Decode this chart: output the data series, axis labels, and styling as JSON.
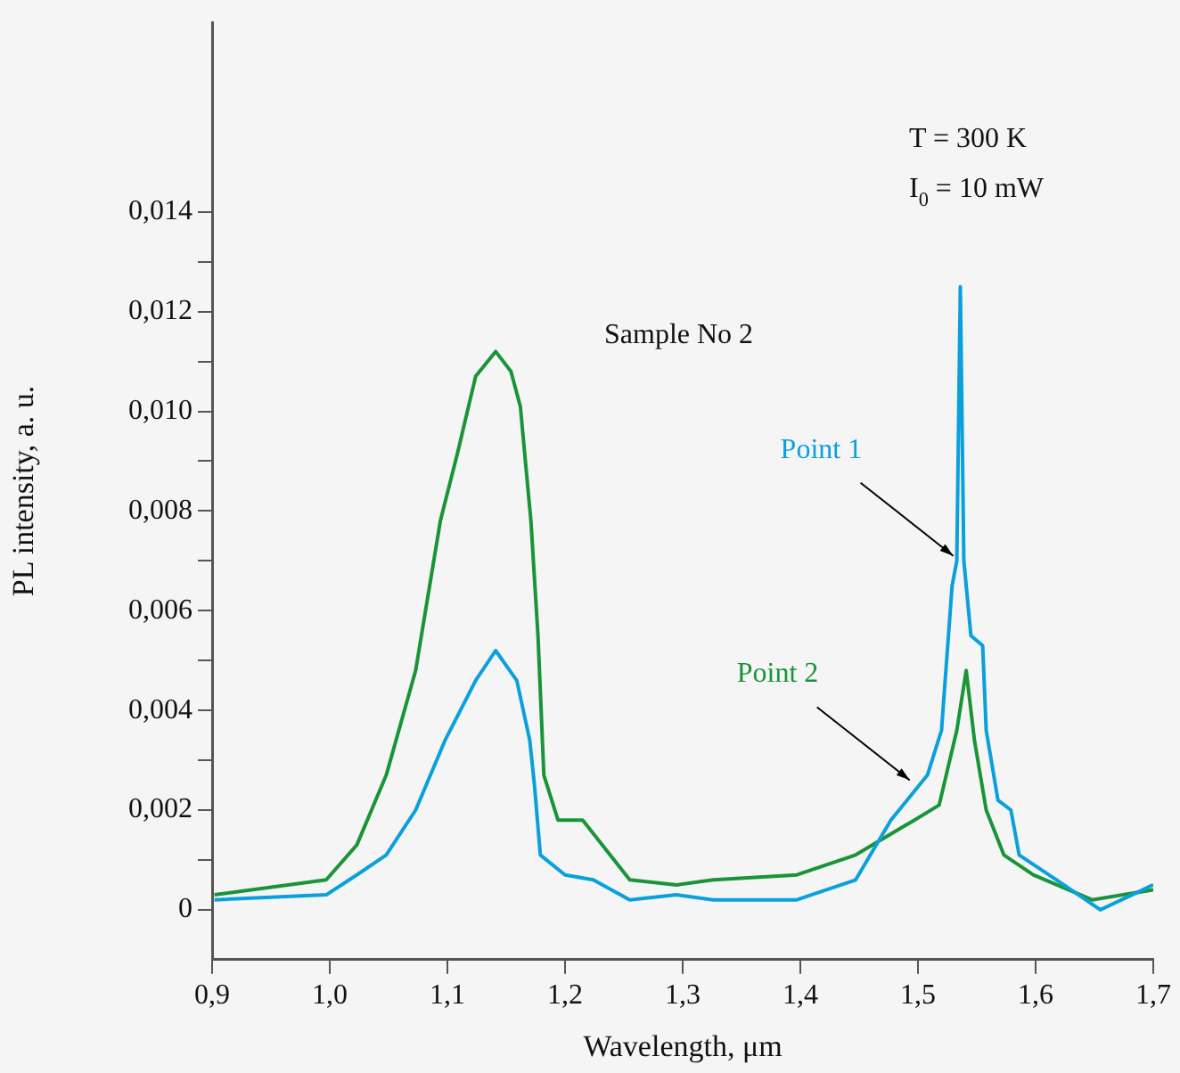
{
  "chart_data": {
    "type": "line",
    "xlabel": "Wavelength, μm",
    "ylabel": "PL intensity, a. u.",
    "xlim": [
      0.9,
      1.7
    ],
    "xticks": [
      {
        "value": 0.9,
        "label": "0,9"
      },
      {
        "value": 1.0,
        "label": "1,0"
      },
      {
        "value": 1.1,
        "label": "1,1"
      },
      {
        "value": 1.2,
        "label": "1,2"
      },
      {
        "value": 1.3,
        "label": "1,3"
      },
      {
        "value": 1.4,
        "label": "1,4"
      },
      {
        "value": 1.5,
        "label": "1,5"
      },
      {
        "value": 1.6,
        "label": "1,6"
      },
      {
        "value": 1.7,
        "label": "1,7"
      }
    ],
    "ylim": [
      -0.001,
      0.0178
    ],
    "yticks": [
      0,
      {
        "value": 0.001,
        "label": null
      },
      {
        "value": 0.002,
        "label": "0,002"
      },
      {
        "value": 0.003,
        "label": null
      },
      {
        "value": 0.004,
        "label": "0,004"
      },
      {
        "value": 0.005,
        "label": null
      },
      {
        "value": 0.006,
        "label": "0,006"
      },
      {
        "value": 0.007,
        "label": null
      },
      {
        "value": 0.008,
        "label": "0,008"
      },
      {
        "value": 0.009,
        "label": null
      },
      {
        "value": 0.01,
        "label": "0,010"
      },
      {
        "value": 0.011,
        "label": null
      },
      {
        "value": 0.012,
        "label": "0,012"
      },
      {
        "value": 0.013,
        "label": null
      },
      {
        "value": 0.014,
        "label": "0,014"
      }
    ],
    "grid": false,
    "legend": false,
    "marker": "none",
    "line_style": "solid",
    "series": [
      {
        "color": "#0aa0dc",
        "x": [
          0.902,
          0.997,
          1.023,
          1.048,
          1.073,
          1.098,
          1.124,
          1.141,
          1.159,
          1.17,
          1.174,
          1.179,
          1.2,
          1.224,
          1.255,
          1.295,
          1.326,
          1.397,
          1.447,
          1.477,
          1.508,
          1.52,
          1.529,
          1.533,
          1.536,
          1.539,
          1.545,
          1.555,
          1.558,
          1.568,
          1.579,
          1.586,
          1.624,
          1.655,
          1.7
        ],
        "values": [
          0.0002,
          0.0003,
          0.0007,
          0.0011,
          0.002,
          0.0034,
          0.0046,
          0.0052,
          0.0046,
          0.0034,
          0.0025,
          0.0011,
          0.0007,
          0.0006,
          0.0002,
          0.0003,
          0.0002,
          0.0002,
          0.0006,
          0.0018,
          0.0027,
          0.0036,
          0.0065,
          0.007,
          0.0125,
          0.007,
          0.0055,
          0.0053,
          0.0036,
          0.0022,
          0.002,
          0.0011,
          0.0005,
          0.0,
          0.0005
        ]
      },
      {
        "color": "#1a9438",
        "x": [
          0.902,
          0.997,
          1.023,
          1.048,
          1.073,
          1.094,
          1.109,
          1.124,
          1.141,
          1.154,
          1.162,
          1.171,
          1.177,
          1.182,
          1.194,
          1.215,
          1.235,
          1.255,
          1.295,
          1.326,
          1.397,
          1.447,
          1.497,
          1.518,
          1.533,
          1.541,
          1.548,
          1.558,
          1.573,
          1.598,
          1.648,
          1.7
        ],
        "values": [
          0.0003,
          0.0006,
          0.0013,
          0.0027,
          0.0048,
          0.0078,
          0.0092,
          0.0107,
          0.0112,
          0.0108,
          0.0101,
          0.0078,
          0.0055,
          0.0027,
          0.0018,
          0.0018,
          0.0012,
          0.0006,
          0.0005,
          0.0006,
          0.0007,
          0.0011,
          0.0018,
          0.0021,
          0.0036,
          0.0048,
          0.0034,
          0.002,
          0.0011,
          0.0007,
          0.0002,
          0.0004
        ]
      }
    ],
    "annotations": [
      {
        "text": "Point 1",
        "x": 1.53,
        "y": 0.0071
      },
      {
        "text": "Point 2",
        "x": 1.493,
        "y": 0.0026
      },
      "Sample No 2",
      "T = 300 K",
      "I$_{0}$ = 10 mW"
    ]
  }
}
